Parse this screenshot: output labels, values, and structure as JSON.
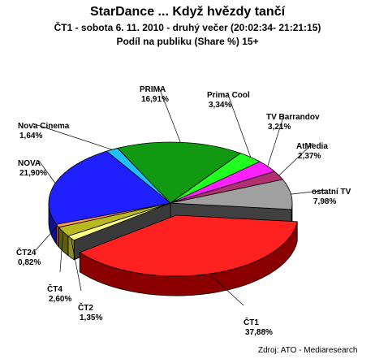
{
  "chart_data": {
    "type": "pie",
    "title": "StarDance ... Když hvězdy tančí",
    "subtitle": "ČT1 - sobota 6. 11. 2010 - druhý večer (20:02:34- 21:21:15)",
    "subtitle2": "Podíl na publiku (Share %) 15+",
    "unit": "%",
    "slices": [
      {
        "name": "ČT1",
        "value": 37.88,
        "label": "37,88%",
        "color": "#ff2020",
        "side": "#8a0000"
      },
      {
        "name": "ČT2",
        "value": 1.35,
        "label": "1,35%",
        "color": "#ffff80",
        "side": "#8a8a30"
      },
      {
        "name": "ČT4",
        "value": 2.6,
        "label": "2,60%",
        "color": "#b8b820",
        "side": "#5e5e08"
      },
      {
        "name": "ČT24",
        "value": 0.82,
        "label": "0,82%",
        "color": "#ff9a50",
        "side": "#8a4a18"
      },
      {
        "name": "NOVA",
        "value": 21.9,
        "label": "21,90%",
        "color": "#2020ff",
        "side": "#10108a"
      },
      {
        "name": "Nova Cinema",
        "value": 1.64,
        "label": "1,64%",
        "color": "#20c0ff",
        "side": "#106a8a"
      },
      {
        "name": "PRIMA",
        "value": 16.91,
        "label": "16,91%",
        "color": "#119911",
        "side": "#075007"
      },
      {
        "name": "Prima Cool",
        "value": 3.34,
        "label": "3,34%",
        "color": "#20ff20",
        "side": "#108a10"
      },
      {
        "name": "TV Barrandov",
        "value": 3.21,
        "label": "3,21%",
        "color": "#ff20ff",
        "side": "#8a108a"
      },
      {
        "name": "AtMedia",
        "value": 2.37,
        "label": "2,37%",
        "color": "#b03070",
        "side": "#5a1838"
      },
      {
        "name": "ostatní TV",
        "value": 7.98,
        "label": "7,98%",
        "color": "#a0a0a0",
        "side": "#505050"
      }
    ],
    "dark_slice": {
      "value": 0.0,
      "color": "#505050",
      "side": "#202020"
    }
  },
  "source": "Zdroj: ATO - Mediaresearch"
}
